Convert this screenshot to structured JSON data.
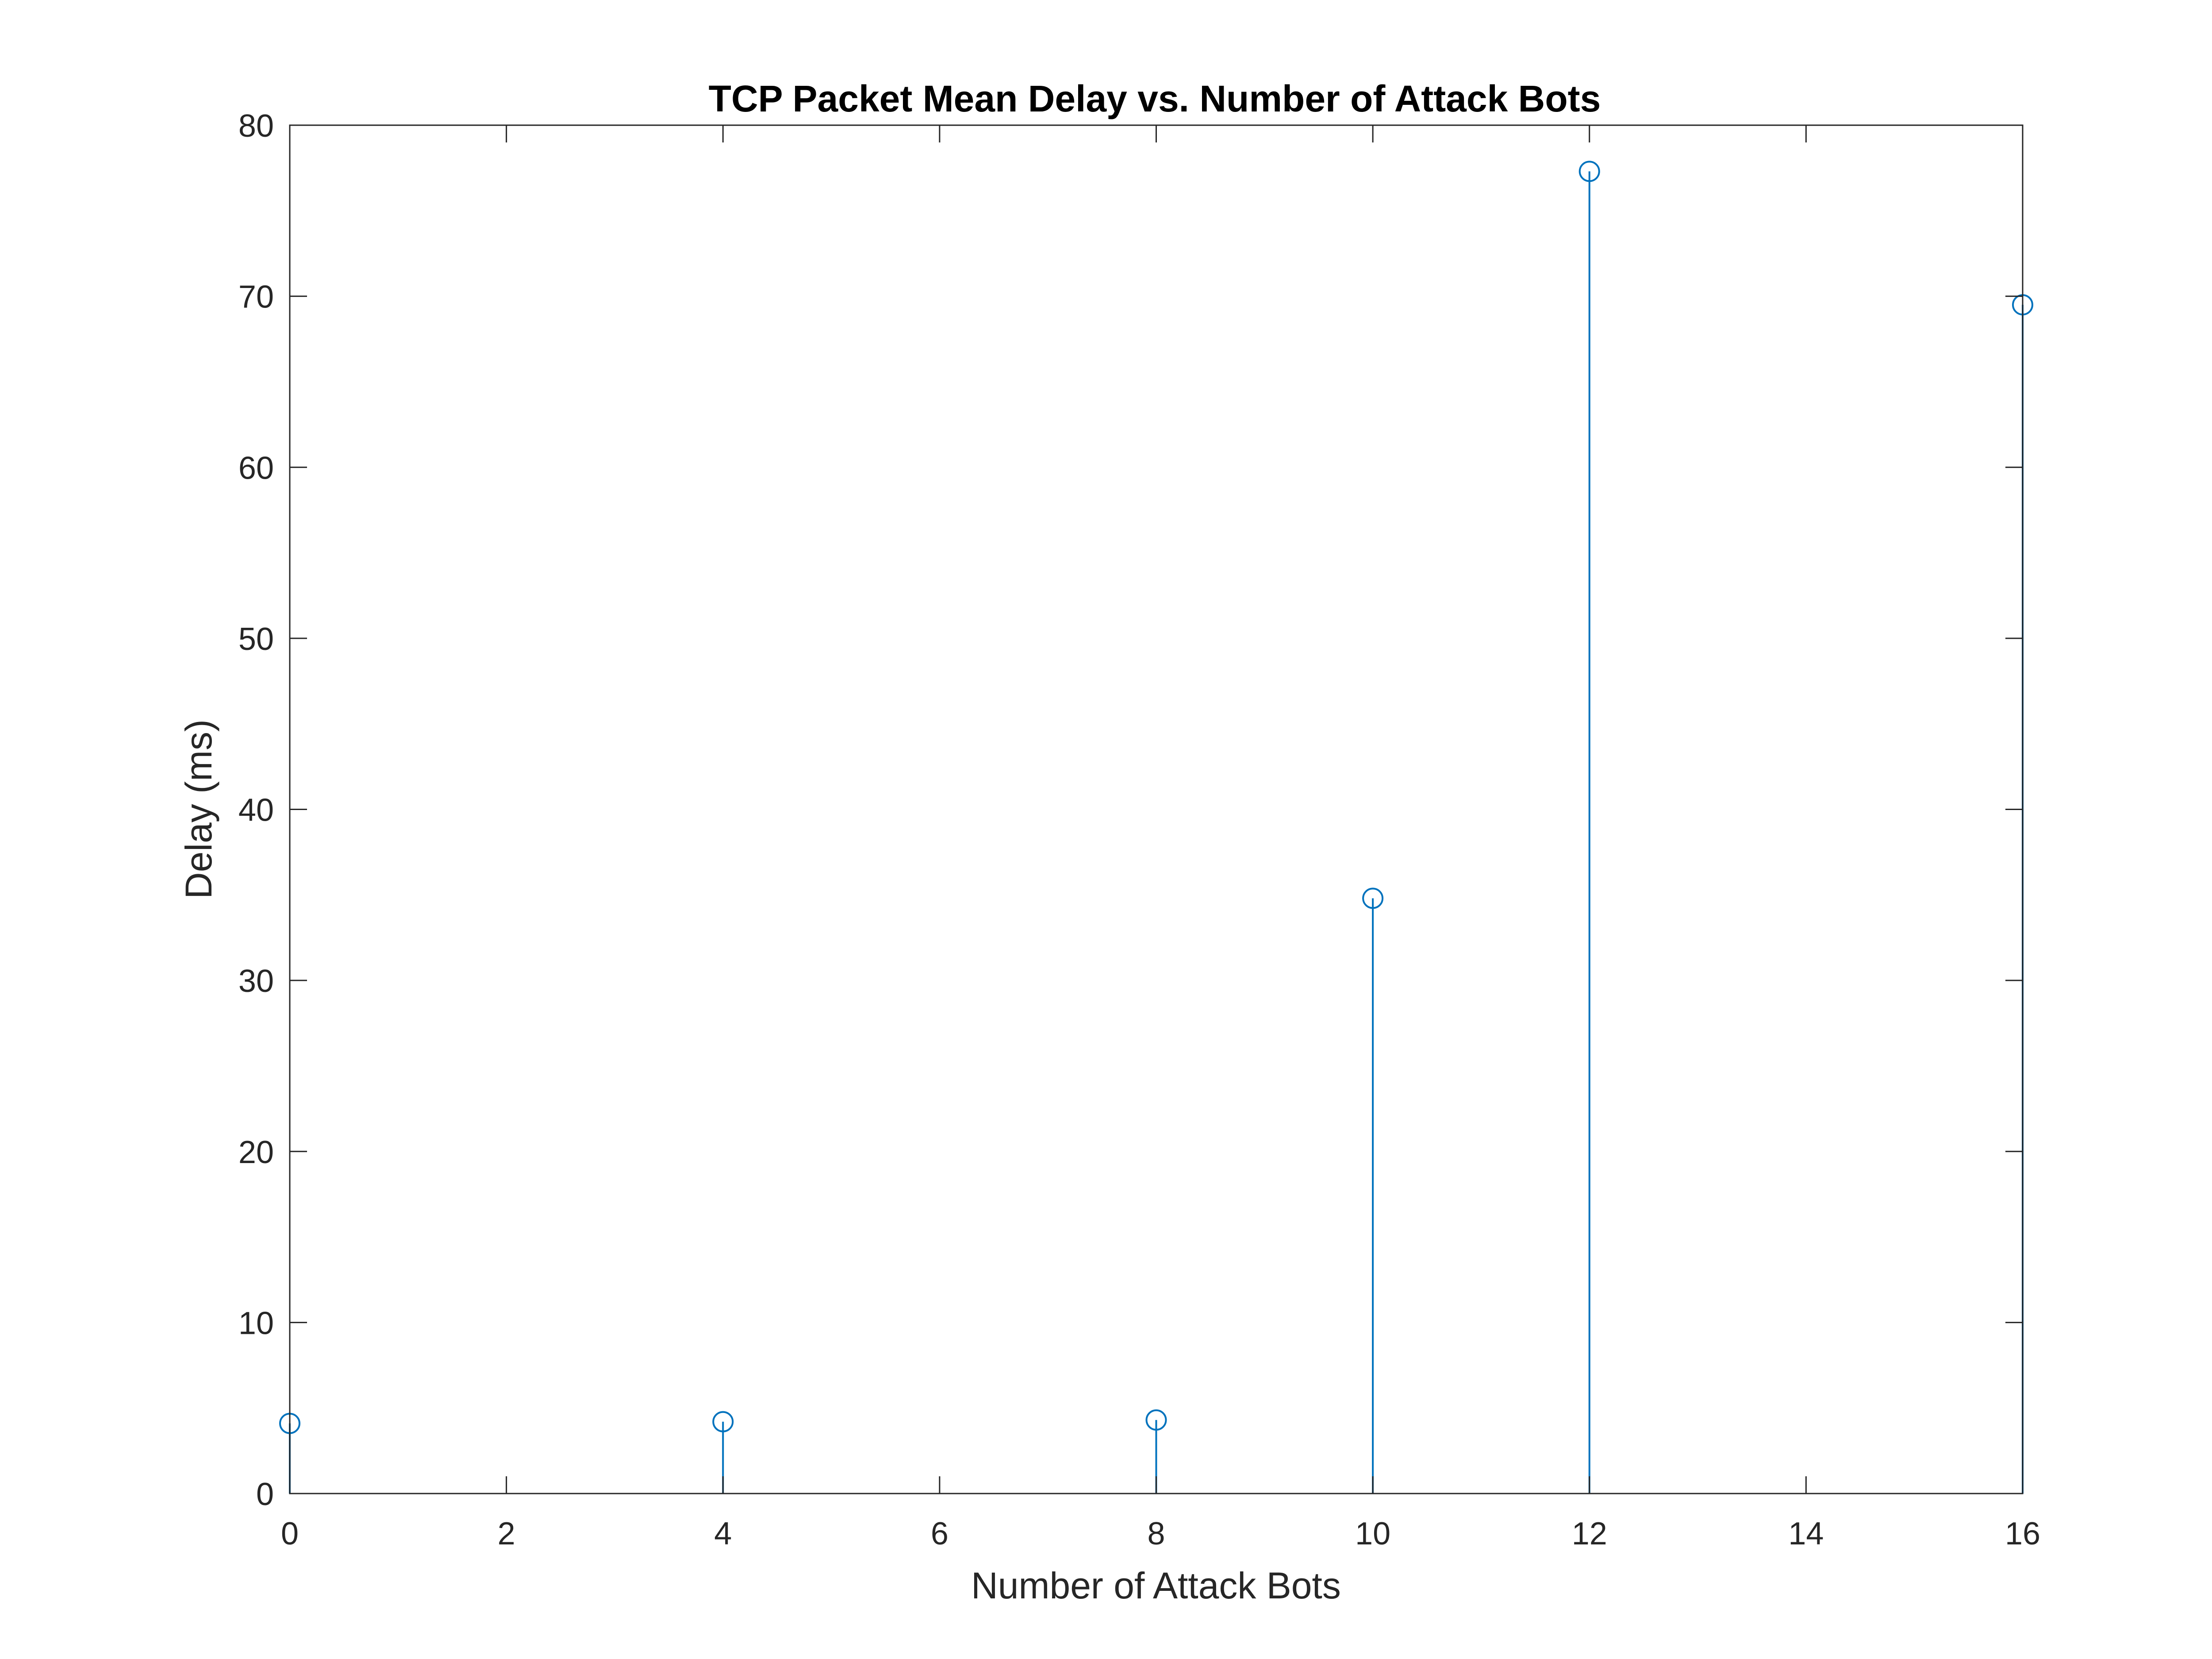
{
  "chart_data": {
    "type": "stem",
    "title": "TCP Packet Mean Delay vs. Number of Attack Bots",
    "xlabel": "Number of Attack Bots",
    "ylabel": "Delay (ms)",
    "xlim": [
      0,
      16
    ],
    "ylim": [
      0,
      80
    ],
    "xticks": [
      "0",
      "2",
      "4",
      "6",
      "8",
      "10",
      "12",
      "14",
      "16"
    ],
    "yticks": [
      "0",
      "10",
      "20",
      "30",
      "40",
      "50",
      "60",
      "70",
      "80"
    ],
    "grid": false,
    "series": [
      {
        "x": [
          0,
          4,
          8,
          10,
          12,
          16
        ],
        "y": [
          4.1,
          4.2,
          4.3,
          34.8,
          77.3,
          69.5
        ],
        "color": "#0072BD",
        "marker": "circle"
      }
    ]
  }
}
